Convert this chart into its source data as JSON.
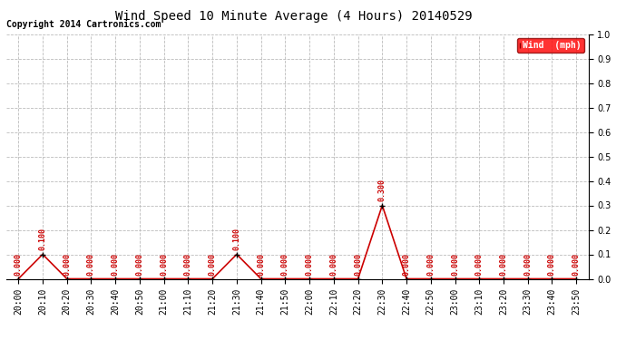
{
  "title": "Wind Speed 10 Minute Average (4 Hours) 20140529",
  "copyright": "Copyright 2014 Cartronics.com",
  "legend_label": "Wind  (mph)",
  "ylim": [
    0.0,
    1.0
  ],
  "yticks": [
    0.0,
    0.1,
    0.2,
    0.3,
    0.4,
    0.5,
    0.6,
    0.7,
    0.8,
    0.9,
    1.0
  ],
  "line_color": "#cc0000",
  "marker_color": "#000000",
  "background_color": "#ffffff",
  "grid_color": "#bbbbbb",
  "times": [
    "20:00",
    "20:10",
    "20:20",
    "20:30",
    "20:40",
    "20:50",
    "21:00",
    "21:10",
    "21:20",
    "21:30",
    "21:40",
    "21:50",
    "22:00",
    "22:10",
    "22:20",
    "22:30",
    "22:40",
    "22:50",
    "23:00",
    "23:10",
    "23:20",
    "23:30",
    "23:40",
    "23:50"
  ],
  "values": [
    0.0,
    0.1,
    0.0,
    0.0,
    0.0,
    0.0,
    0.0,
    0.0,
    0.0,
    0.1,
    0.0,
    0.0,
    0.0,
    0.0,
    0.0,
    0.3,
    0.0,
    0.0,
    0.0,
    0.0,
    0.0,
    0.0,
    0.0,
    0.0
  ],
  "title_fontsize": 10,
  "copyright_fontsize": 7,
  "label_fontsize": 6,
  "tick_fontsize": 7
}
